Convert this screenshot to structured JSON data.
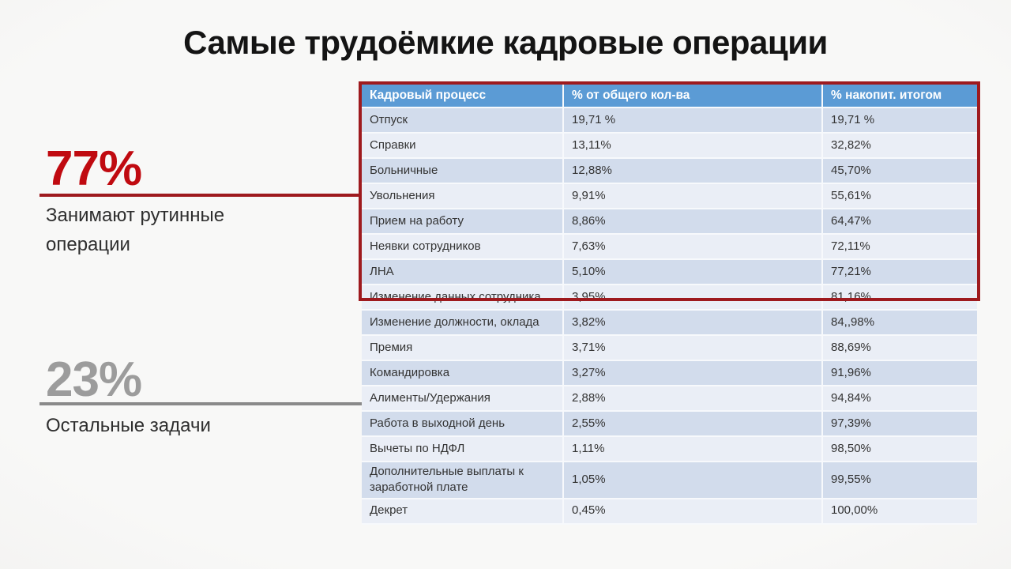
{
  "slide": {
    "title": "Самые трудоёмкие кадровые операции"
  },
  "callouts": [
    {
      "value": "77%",
      "label": "Занимают рутинные операции",
      "number_color": "#C00A10",
      "line_color": "#9E1A1E"
    },
    {
      "value": "23%",
      "label": "Остальные задачи",
      "number_color": "#9C9C9C",
      "line_color": "#8A8A8A"
    }
  ],
  "table": {
    "columns": [
      "Кадровый процесс",
      "% от общего кол-ва",
      "% накопит. итогом"
    ],
    "header_bg": "#5B9BD5",
    "highlight_border_color": "#9E1A1E",
    "highlighted_row_count": 7,
    "rows": [
      [
        "Отпуск",
        "19,71 %",
        "19,71 %"
      ],
      [
        "Справки",
        "13,11%",
        "32,82%"
      ],
      [
        "Больничные",
        "12,88%",
        "45,70%"
      ],
      [
        "Увольнения",
        "9,91%",
        "55,61%"
      ],
      [
        "Прием на работу",
        "8,86%",
        "64,47%"
      ],
      [
        "Неявки сотрудников",
        "7,63%",
        "72,11%"
      ],
      [
        "ЛНА",
        "5,10%",
        "77,21%"
      ],
      [
        "Изменение данных сотрудника",
        "3,95%",
        "81,16%"
      ],
      [
        "Изменение должности, оклада",
        "3,82%",
        "84,,98%"
      ],
      [
        "Премия",
        "3,71%",
        "88,69%"
      ],
      [
        "Командировка",
        "3,27%",
        "91,96%"
      ],
      [
        "Алименты/Удержания",
        "2,88%",
        "94,84%"
      ],
      [
        "Работа в выходной день",
        "2,55%",
        "97,39%"
      ],
      [
        "Вычеты по НДФЛ",
        "1,11%",
        "98,50%"
      ],
      [
        "Дополнительные выплаты к заработной плате",
        "1,05%",
        "99,55%"
      ],
      [
        "Декрет",
        "0,45%",
        "100,00%"
      ]
    ]
  }
}
